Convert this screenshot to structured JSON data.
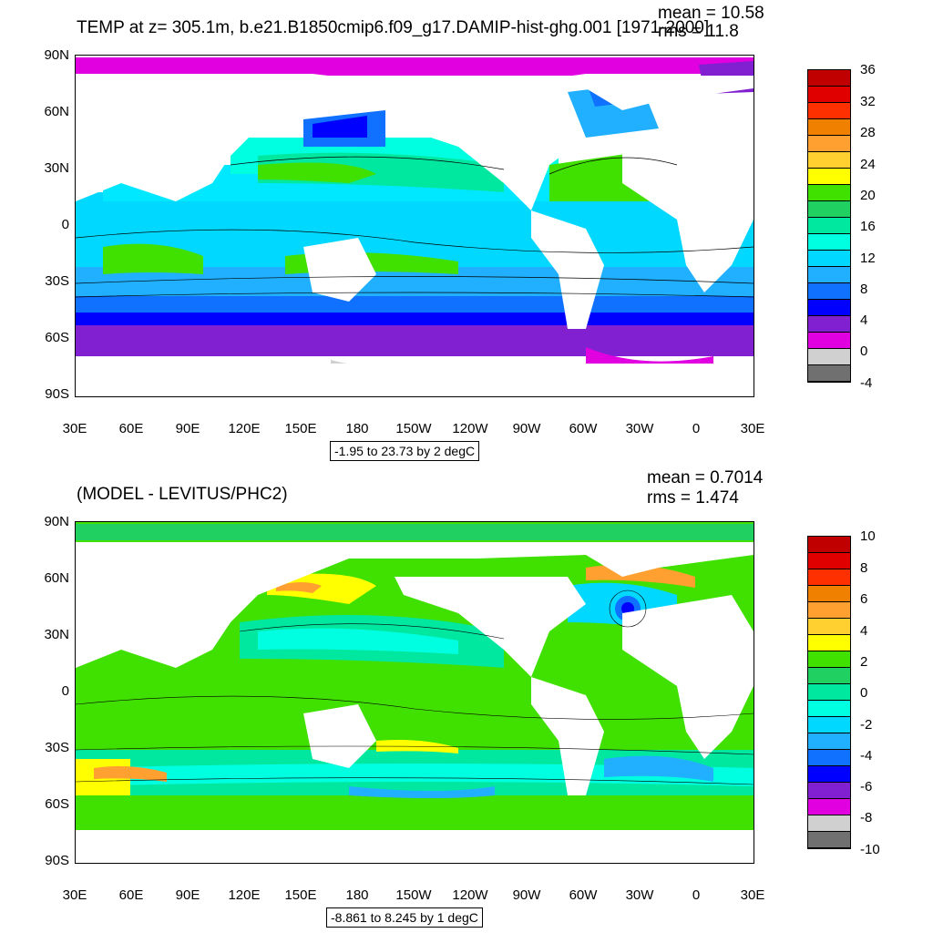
{
  "top": {
    "title": "TEMP at z= 305.1m, b.e21.B1850cmip6.f09_g17.DAMIP-hist-ghg.001 [1971-2000]",
    "mean": "mean = 10.58",
    "rms": "rms = 11.8",
    "range": "-1.95 to 23.73 by 2 degC",
    "colorbar": {
      "labels": [
        "36",
        "32",
        "28",
        "24",
        "20",
        "16",
        "12",
        "8",
        "4",
        "0",
        "-4"
      ],
      "colors": [
        "#c00000",
        "#e00000",
        "#ff3000",
        "#f08000",
        "#ffa030",
        "#ffd030",
        "#ffff00",
        "#40e000",
        "#20d060",
        "#00e8a0",
        "#00ffe0",
        "#00d8ff",
        "#20b0ff",
        "#1070ff",
        "#0000ff",
        "#8020d0",
        "#e000e0",
        "#d0d0d0",
        "#707070"
      ]
    }
  },
  "bottom": {
    "title": "(MODEL - LEVITUS/PHC2)",
    "mean": "mean = 0.7014",
    "rms": "rms = 1.474",
    "range": "-8.861 to 8.245 by 1 degC",
    "colorbar": {
      "labels": [
        "10",
        "8",
        "6",
        "4",
        "2",
        "0",
        "-2",
        "-4",
        "-6",
        "-8",
        "-10"
      ],
      "colors": [
        "#c00000",
        "#e00000",
        "#ff3000",
        "#f08000",
        "#ffa030",
        "#ffd030",
        "#ffff00",
        "#40e000",
        "#20d060",
        "#00e8a0",
        "#00ffe0",
        "#00d8ff",
        "#20b0ff",
        "#1070ff",
        "#0000ff",
        "#8020d0",
        "#e000e0",
        "#d0d0d0",
        "#707070"
      ]
    }
  },
  "axes": {
    "lat_labels": [
      "90N",
      "60N",
      "30N",
      "0",
      "30S",
      "60S",
      "90S"
    ],
    "lon_labels": [
      "30E",
      "60E",
      "90E",
      "120E",
      "150E",
      "180",
      "150W",
      "120W",
      "90W",
      "60W",
      "30W",
      "0",
      "30E"
    ]
  }
}
